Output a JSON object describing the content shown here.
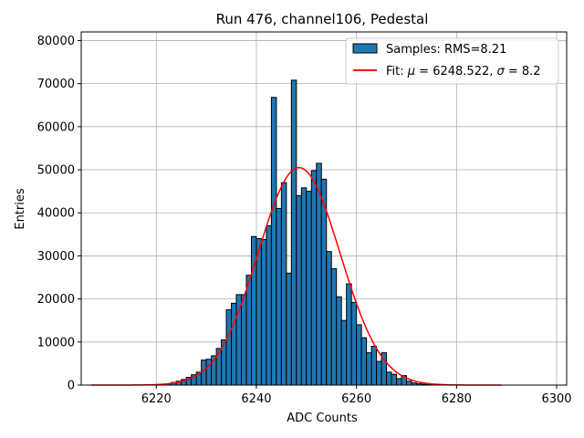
{
  "chart_data": {
    "type": "bar",
    "title": "Run 476, channel106, Pedestal",
    "xlabel": "ADC Counts",
    "ylabel": "Entries",
    "xlim": [
      6205,
      6302
    ],
    "ylim": [
      0,
      82000
    ],
    "grid": true,
    "legend_position": "top-right",
    "x_ticks": [
      6220,
      6240,
      6260,
      6280,
      6300
    ],
    "y_ticks": [
      0,
      10000,
      20000,
      30000,
      40000,
      50000,
      60000,
      70000,
      80000
    ],
    "x_tick_labels": [
      "6220",
      "6240",
      "6260",
      "6280",
      "6300"
    ],
    "y_tick_labels": [
      "0",
      "10000",
      "20000",
      "30000",
      "40000",
      "50000",
      "60000",
      "70000",
      "80000"
    ],
    "histogram": {
      "name": "Samples: RMS=8.21",
      "color": "#1f77b4",
      "edge_color": "#000000",
      "bin_width": 1,
      "bin_start": [
        6221,
        6222,
        6223,
        6224,
        6225,
        6226,
        6227,
        6228,
        6229,
        6230,
        6231,
        6232,
        6233,
        6234,
        6235,
        6236,
        6237,
        6238,
        6239,
        6240,
        6241,
        6242,
        6243,
        6244,
        6245,
        6246,
        6247,
        6248,
        6249,
        6250,
        6251,
        6252,
        6253,
        6254,
        6255,
        6256,
        6257,
        6258,
        6259,
        6260,
        6261,
        6262,
        6263,
        6264,
        6265,
        6266,
        6267,
        6268,
        6269,
        6270,
        6271,
        6272,
        6273,
        6274,
        6275,
        6276,
        6277,
        6278
      ],
      "counts": [
        200,
        300,
        600,
        900,
        1300,
        1800,
        2400,
        3000,
        5800,
        6000,
        6800,
        8500,
        10500,
        17500,
        19000,
        21000,
        21000,
        25500,
        34500,
        34000,
        33800,
        37000,
        66800,
        41000,
        47000,
        26000,
        70800,
        44000,
        45800,
        45000,
        49800,
        51500,
        47800,
        31000,
        27000,
        20500,
        15000,
        23500,
        19200,
        14000,
        11000,
        7500,
        9000,
        5500,
        7500,
        3000,
        2500,
        1500,
        2200,
        900,
        500,
        300,
        200,
        100,
        50,
        30,
        20,
        10
      ]
    },
    "fit": {
      "name": "Fit: μ = 6248.522, σ = 8.2",
      "legend_prefix": "Fit: ",
      "mu_symbol": "μ",
      "mu_text": " = 6248.522, ",
      "sigma_symbol": "σ",
      "sigma_text": " = 8.2",
      "color": "#ff0000",
      "mu": 6248.522,
      "sigma": 8.2,
      "amplitude": 50500,
      "x_range": [
        6207,
        6289
      ]
    }
  }
}
